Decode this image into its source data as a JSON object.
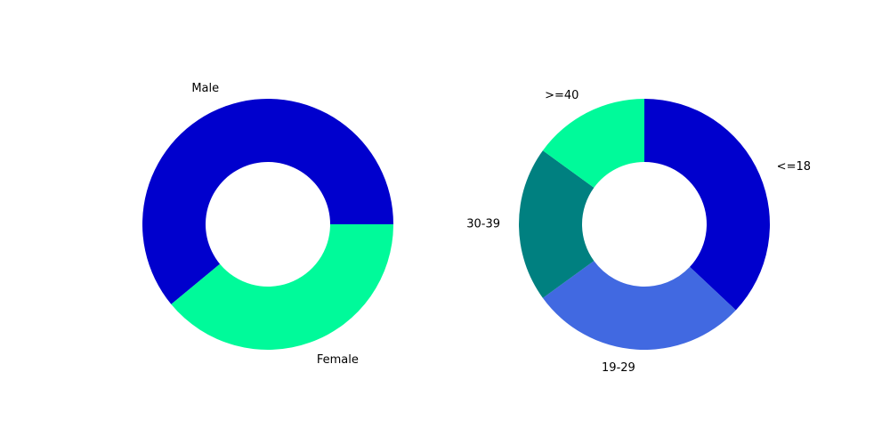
{
  "chart_data": [
    {
      "type": "pie",
      "style": "donut",
      "title": "",
      "categories": [
        "Male",
        "Female"
      ],
      "values": [
        61,
        39
      ],
      "colors": [
        "#0000cd",
        "#00fa9a"
      ],
      "start_angle_deg": 0,
      "direction": "counterclockwise",
      "legend": "none"
    },
    {
      "type": "pie",
      "style": "donut",
      "title": "",
      "categories": [
        "<=18",
        "19-29",
        "30-39",
        ">=40"
      ],
      "values": [
        37,
        28,
        20,
        15
      ],
      "colors": [
        "#0000cd",
        "#4169e1",
        "#008080",
        "#00fa9a"
      ],
      "start_angle_deg": 90,
      "direction": "clockwise",
      "legend": "none"
    }
  ]
}
